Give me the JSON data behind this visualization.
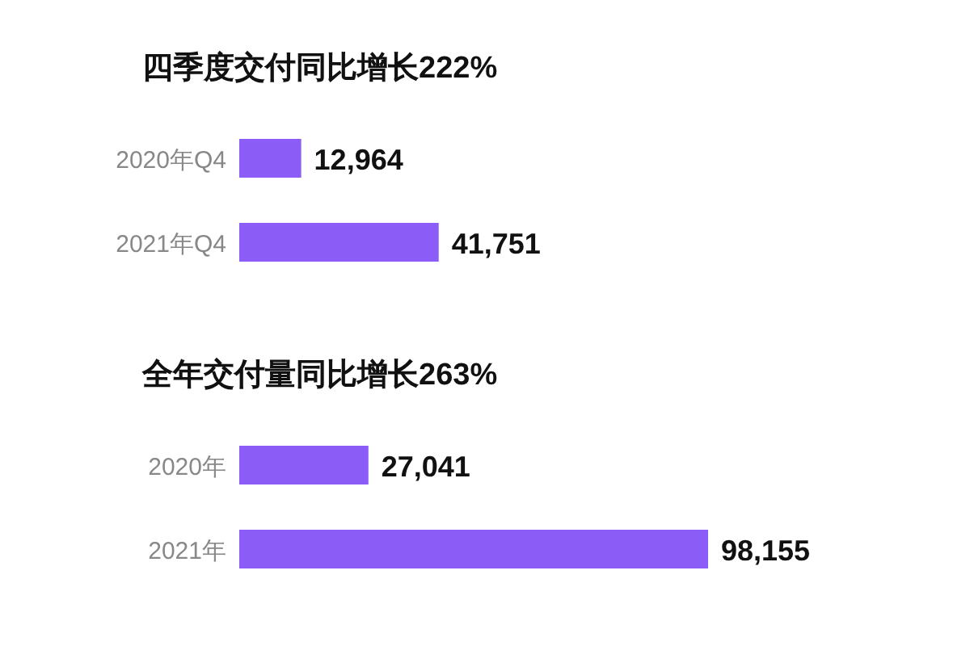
{
  "chart_data": [
    {
      "type": "bar",
      "orientation": "horizontal",
      "title": "四季度交付同比增长222%",
      "categories": [
        "2020年Q4",
        "2021年Q4"
      ],
      "values": [
        12964,
        41751
      ],
      "value_labels": [
        "12,964",
        "41,751"
      ],
      "color": "#8b5cf6"
    },
    {
      "type": "bar",
      "orientation": "horizontal",
      "title": "全年交付量同比增长263%",
      "categories": [
        "2020年",
        "2021年"
      ],
      "values": [
        27041,
        98155
      ],
      "value_labels": [
        "27,041",
        "98,155"
      ],
      "color": "#8b5cf6"
    }
  ]
}
